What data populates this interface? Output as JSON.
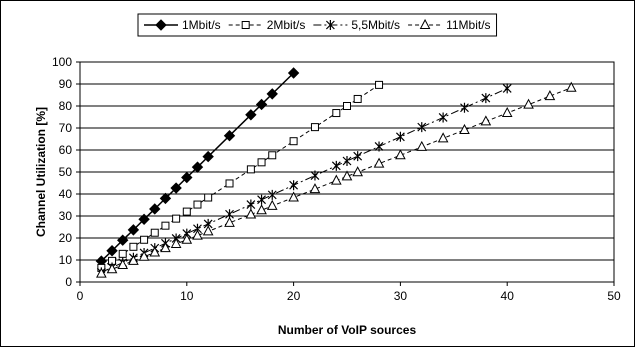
{
  "chart_data": {
    "type": "line",
    "title": "",
    "xlabel": "Number of VoIP sources",
    "ylabel": "Channel Utilization [%]",
    "xlim": [
      0,
      50
    ],
    "ylim": [
      0,
      100
    ],
    "xticks": [
      0,
      10,
      20,
      30,
      40,
      50
    ],
    "yticks": [
      0,
      10,
      20,
      30,
      40,
      50,
      60,
      70,
      80,
      90,
      100
    ],
    "grid": "horizontal",
    "legend_position": "top",
    "series": [
      {
        "name": "1Mbit/s",
        "marker": "diamond-filled",
        "line": "solid",
        "color": "#000000",
        "x": [
          2,
          3,
          4,
          5,
          6,
          7,
          8,
          9,
          10,
          11,
          12,
          14,
          16,
          17,
          18,
          20
        ],
        "y": [
          9.5,
          14.2,
          19,
          23.7,
          28.5,
          33.2,
          38,
          42.7,
          47.5,
          52.2,
          57,
          66.5,
          76,
          80.7,
          85.5,
          95
        ]
      },
      {
        "name": "2Mbit/s",
        "marker": "square-open",
        "line": "dashed",
        "color": "#000000",
        "x": [
          2,
          3,
          4,
          5,
          6,
          7,
          8,
          9,
          10,
          11,
          12,
          14,
          16,
          17,
          18,
          20,
          22,
          24,
          25,
          26,
          28
        ],
        "y": [
          6.4,
          9.6,
          12.8,
          16,
          19.2,
          22.4,
          25.6,
          28.8,
          32,
          35.2,
          38.4,
          44.8,
          51.2,
          54.4,
          57.6,
          64,
          70.4,
          76.8,
          80,
          83.2,
          89.6
        ]
      },
      {
        "name": "5,5Mbit/s",
        "marker": "asterisk",
        "line": "dash-dot",
        "color": "#000000",
        "x": [
          2,
          3,
          4,
          5,
          6,
          7,
          8,
          9,
          10,
          11,
          12,
          14,
          16,
          17,
          18,
          20,
          22,
          24,
          25,
          26,
          28,
          30,
          32,
          34,
          36,
          38,
          40
        ],
        "y": [
          4.4,
          6.6,
          8.8,
          11,
          13.2,
          15.4,
          17.6,
          19.8,
          22,
          24.2,
          26.4,
          30.8,
          35.2,
          37.4,
          39.6,
          44,
          48.4,
          52.8,
          55,
          57.2,
          61.6,
          66,
          70.4,
          74.8,
          79.2,
          83.6,
          88
        ]
      },
      {
        "name": "11Mbit/s",
        "marker": "triangle-open",
        "line": "dashed",
        "color": "#000000",
        "x": [
          2,
          3,
          4,
          5,
          6,
          7,
          8,
          9,
          10,
          11,
          12,
          14,
          16,
          17,
          18,
          20,
          22,
          24,
          25,
          26,
          28,
          30,
          32,
          34,
          36,
          38,
          40,
          42,
          44,
          46
        ],
        "y": [
          3.8,
          5.8,
          7.7,
          9.6,
          11.5,
          13.4,
          15.4,
          17.3,
          19.2,
          21.1,
          23,
          26.9,
          30.7,
          32.6,
          34.6,
          38.4,
          42.2,
          46.1,
          48,
          49.9,
          53.8,
          57.6,
          61.4,
          65.3,
          69.1,
          73,
          76.8,
          80.6,
          84.5,
          88.3
        ]
      }
    ]
  }
}
